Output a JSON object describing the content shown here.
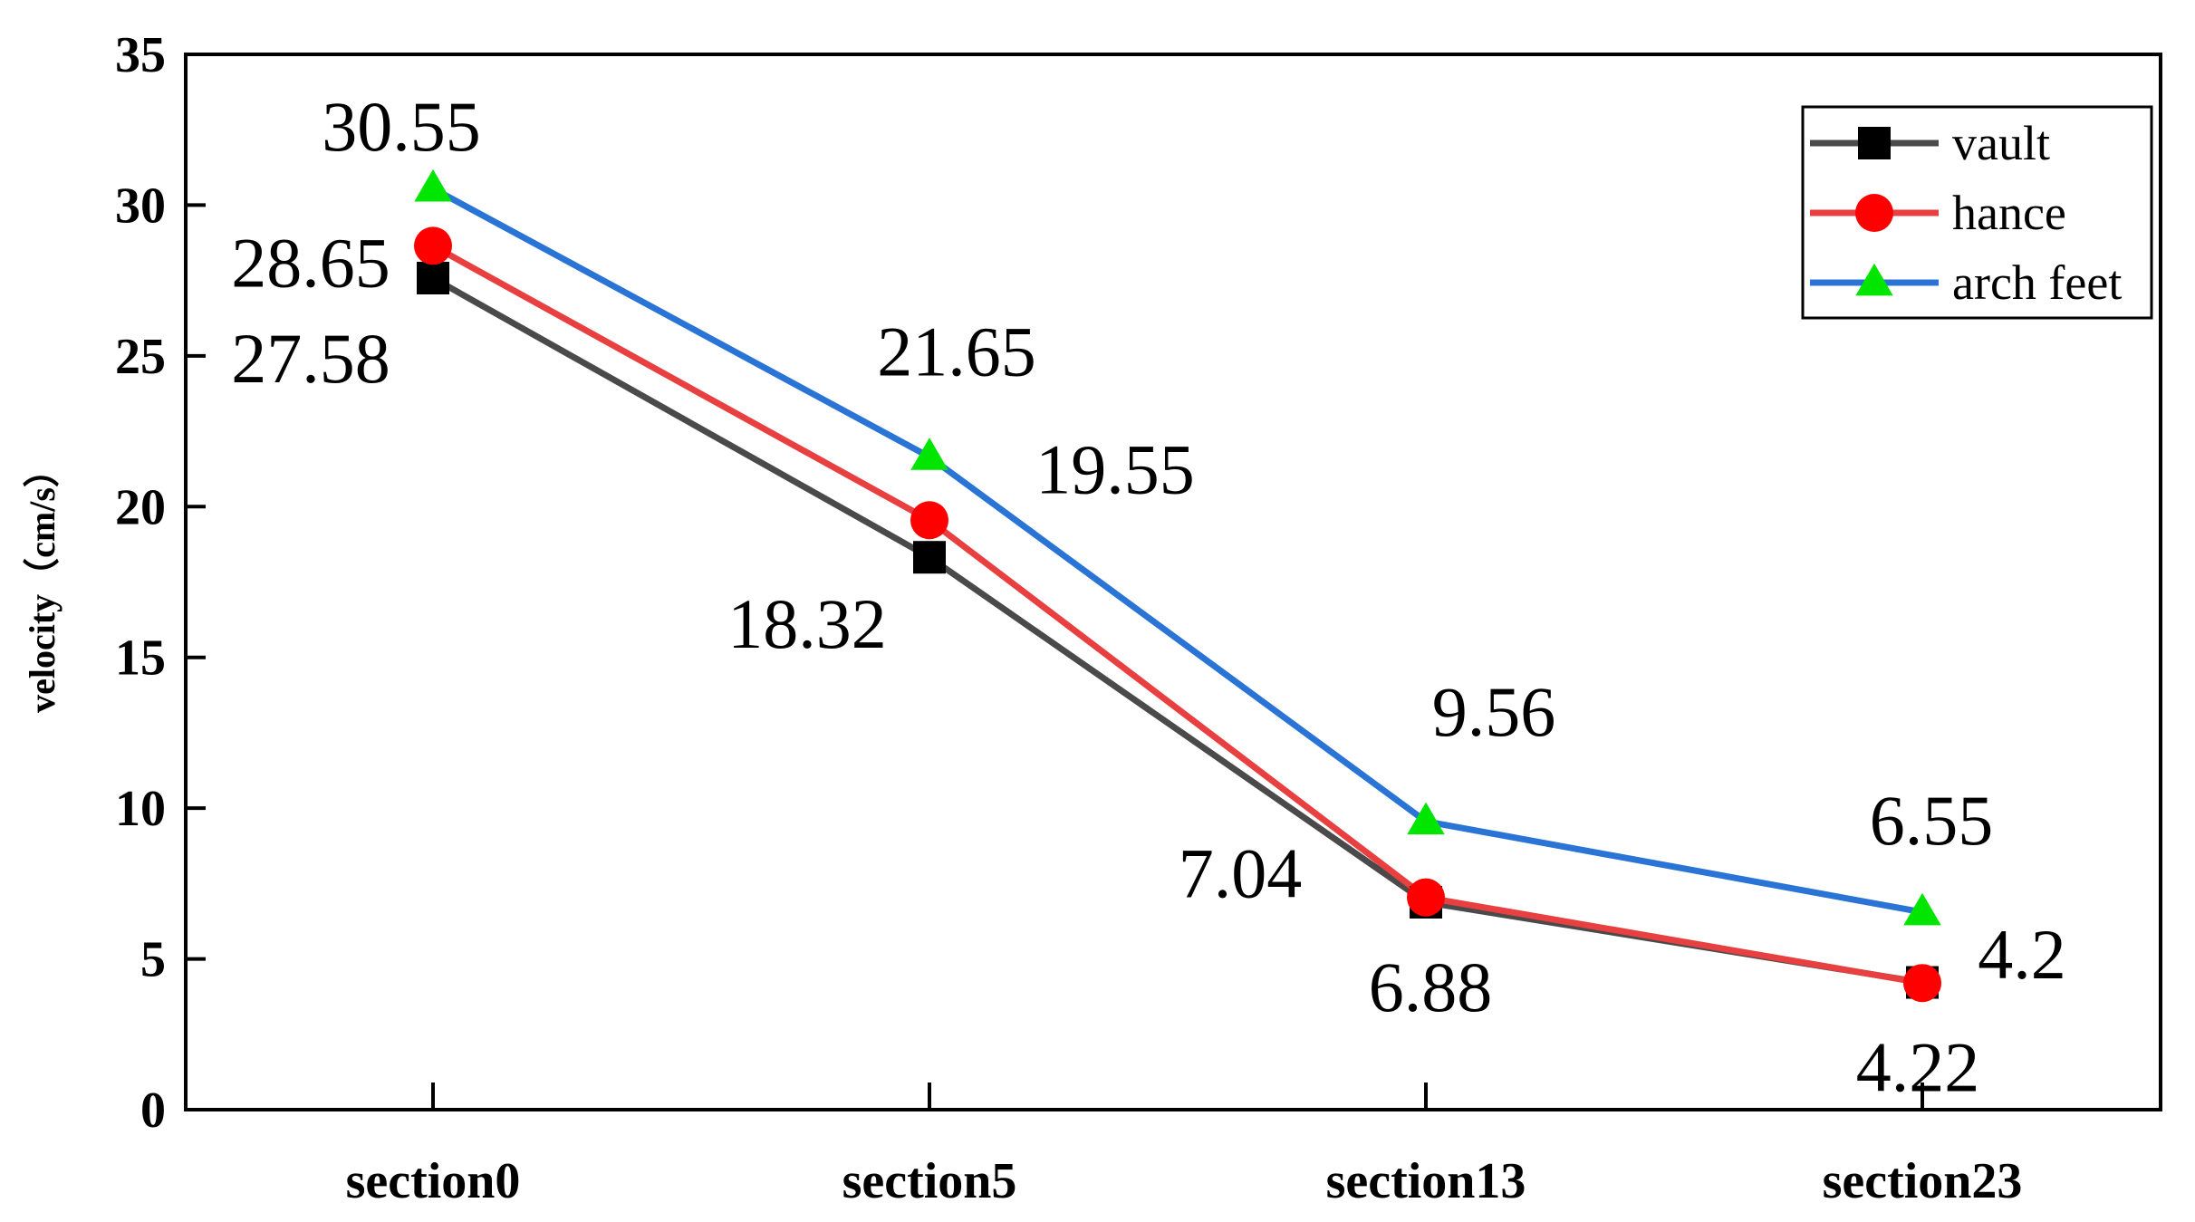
{
  "chart_data": {
    "type": "line",
    "title": "",
    "xlabel": "",
    "ylabel": "velocity（cm/s）",
    "categories": [
      "section0",
      "section5",
      "section13",
      "section23"
    ],
    "ylim": [
      0,
      35
    ],
    "yticks": [
      0,
      5,
      10,
      15,
      20,
      25,
      30,
      35
    ],
    "grid": false,
    "legend_position": "top-right",
    "series": [
      {
        "name": "vault",
        "values": [
          27.58,
          18.32,
          6.88,
          4.22
        ],
        "color": "#4a4a4a",
        "marker": "square",
        "marker_color": "#000000"
      },
      {
        "name": "hance",
        "values": [
          28.65,
          19.55,
          7.04,
          4.2
        ],
        "color": "#e84040",
        "marker": "circle",
        "marker_color": "#ff0000"
      },
      {
        "name": "arch feet",
        "values": [
          30.55,
          21.65,
          9.56,
          6.55
        ],
        "color": "#2a74d6",
        "marker": "triangle",
        "marker_color": "#00e600"
      }
    ],
    "annotations": [
      {
        "series": 0,
        "index": 0,
        "text": "27.58"
      },
      {
        "series": 0,
        "index": 1,
        "text": "18.32"
      },
      {
        "series": 0,
        "index": 2,
        "text": "6.88"
      },
      {
        "series": 0,
        "index": 3,
        "text": "4.22"
      },
      {
        "series": 1,
        "index": 0,
        "text": "28.65"
      },
      {
        "series": 1,
        "index": 1,
        "text": "19.55"
      },
      {
        "series": 1,
        "index": 2,
        "text": "7.04"
      },
      {
        "series": 1,
        "index": 3,
        "text": "4.2"
      },
      {
        "series": 2,
        "index": 0,
        "text": "30.55"
      },
      {
        "series": 2,
        "index": 1,
        "text": "21.65"
      },
      {
        "series": 2,
        "index": 2,
        "text": "9.56"
      },
      {
        "series": 2,
        "index": 3,
        "text": "6.55"
      }
    ]
  }
}
